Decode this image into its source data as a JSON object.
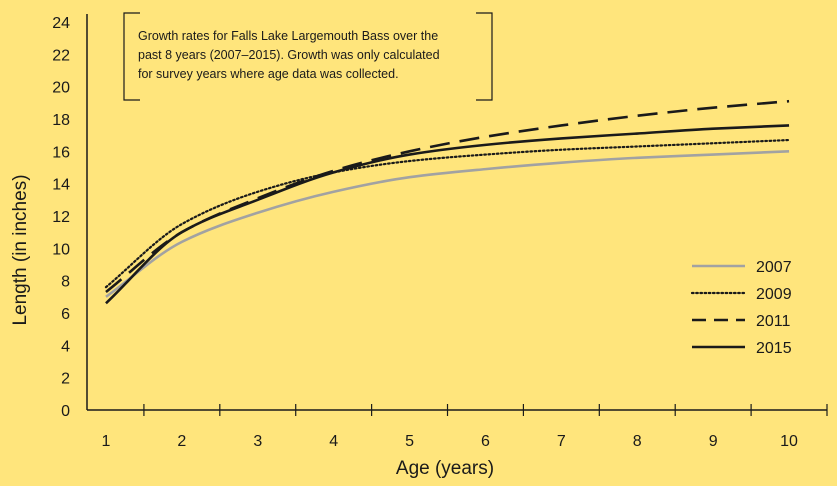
{
  "chart_data": {
    "type": "line",
    "title": "",
    "annotation": [
      "Growth rates for Falls Lake Largemouth Bass over the",
      "past 8 years (2007–2015). Growth was only calculated",
      "for survey years where age data was collected."
    ],
    "xlabel": "Age (years)",
    "ylabel": "Length (in inches)",
    "xlim": [
      0.75,
      10.5
    ],
    "ylim": [
      0,
      24
    ],
    "x_ticks": [
      "1",
      "2",
      "3",
      "4",
      "5",
      "6",
      "7",
      "8",
      "9",
      "10"
    ],
    "y_ticks": [
      "0",
      "2",
      "4",
      "6",
      "8",
      "10",
      "12",
      "14",
      "16",
      "18",
      "20",
      "22",
      "24"
    ],
    "grid": false,
    "legend_position": "right",
    "x": [
      1,
      2,
      3,
      4,
      5,
      6,
      7,
      8,
      9,
      10
    ],
    "series": [
      {
        "name": "2007",
        "color": "#a2a2a2",
        "dash": "solid",
        "values": [
          7.0,
          10.4,
          12.2,
          13.5,
          14.4,
          14.9,
          15.3,
          15.6,
          15.8,
          16.0
        ]
      },
      {
        "name": "2009",
        "color": "#1a1a1a",
        "dash": "dotted",
        "values": [
          7.6,
          11.5,
          13.5,
          14.7,
          15.4,
          15.8,
          16.1,
          16.3,
          16.5,
          16.7
        ]
      },
      {
        "name": "2011",
        "color": "#1a1a1a",
        "dash": "dashed",
        "values": [
          7.3,
          11.0,
          13.1,
          14.8,
          16.0,
          16.9,
          17.6,
          18.2,
          18.7,
          19.1
        ]
      },
      {
        "name": "2015",
        "color": "#1a1a1a",
        "dash": "solid",
        "values": [
          6.6,
          11.0,
          13.0,
          14.7,
          15.8,
          16.4,
          16.8,
          17.1,
          17.4,
          17.6
        ]
      }
    ]
  }
}
